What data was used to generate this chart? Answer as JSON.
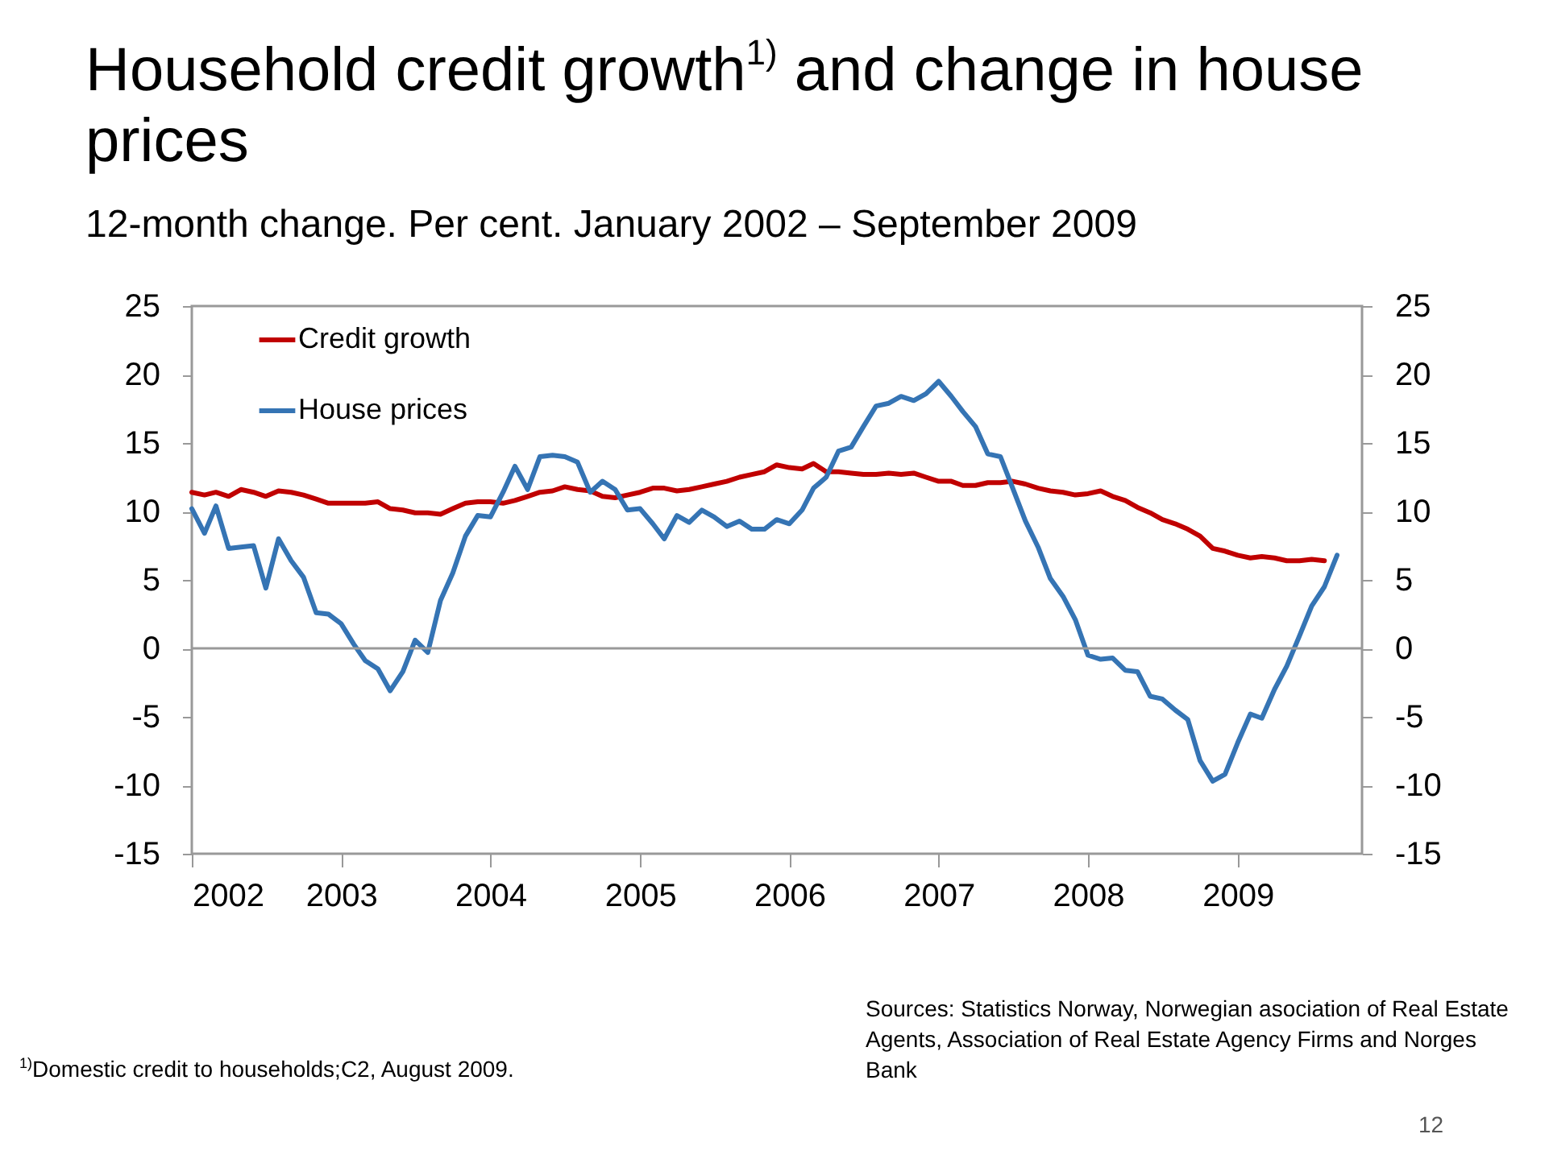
{
  "chart_data": {
    "type": "line",
    "title": "Household credit growth$^{1)}$ and change in house prices",
    "subtitle": "12-month change. Per cent. January 2002 – September 2009",
    "x": [
      "2002-01",
      "2002-02",
      "2002-03",
      "2002-04",
      "2002-05",
      "2002-06",
      "2002-07",
      "2002-08",
      "2002-09",
      "2002-10",
      "2002-11",
      "2002-12",
      "2003-01",
      "2003-02",
      "2003-03",
      "2003-04",
      "2003-05",
      "2003-06",
      "2003-07",
      "2003-08",
      "2003-09",
      "2003-10",
      "2003-11",
      "2003-12",
      "2004-01",
      "2004-02",
      "2004-03",
      "2004-04",
      "2004-05",
      "2004-06",
      "2004-07",
      "2004-08",
      "2004-09",
      "2004-10",
      "2004-11",
      "2004-12",
      "2005-01",
      "2005-02",
      "2005-03",
      "2005-04",
      "2005-05",
      "2005-06",
      "2005-07",
      "2005-08",
      "2005-09",
      "2005-10",
      "2005-11",
      "2005-12",
      "2006-01",
      "2006-02",
      "2006-03",
      "2006-04",
      "2006-05",
      "2006-06",
      "2006-07",
      "2006-08",
      "2006-09",
      "2006-10",
      "2006-11",
      "2006-12",
      "2007-01",
      "2007-02",
      "2007-03",
      "2007-04",
      "2007-05",
      "2007-06",
      "2007-07",
      "2007-08",
      "2007-09",
      "2007-10",
      "2007-11",
      "2007-12",
      "2008-01",
      "2008-02",
      "2008-03",
      "2008-04",
      "2008-05",
      "2008-06",
      "2008-07",
      "2008-08",
      "2008-09",
      "2008-10",
      "2008-11",
      "2008-12",
      "2009-01",
      "2009-02",
      "2009-03",
      "2009-04",
      "2009-05",
      "2009-06",
      "2009-07",
      "2009-08",
      "2009-09"
    ],
    "series": [
      {
        "name": "Credit growth",
        "color": "#c00000",
        "values": [
          11.4,
          11.2,
          11.4,
          11.1,
          11.6,
          11.4,
          11.1,
          11.5,
          11.4,
          11.2,
          10.9,
          10.6,
          10.6,
          10.6,
          10.6,
          10.7,
          10.2,
          10.1,
          9.9,
          9.9,
          9.8,
          10.2,
          10.6,
          10.7,
          10.7,
          10.6,
          10.8,
          11.1,
          11.4,
          11.5,
          11.8,
          11.6,
          11.5,
          11.1,
          11.0,
          11.2,
          11.4,
          11.7,
          11.7,
          11.5,
          11.6,
          11.8,
          12.0,
          12.2,
          12.5,
          12.7,
          12.9,
          13.4,
          13.2,
          13.1,
          13.5,
          12.9,
          12.9,
          12.8,
          12.7,
          12.7,
          12.8,
          12.7,
          12.8,
          12.5,
          12.2,
          12.2,
          11.9,
          11.9,
          12.1,
          12.1,
          12.2,
          12.0,
          11.7,
          11.5,
          11.4,
          11.2,
          11.3,
          11.5,
          11.1,
          10.8,
          10.3,
          9.9,
          9.4,
          9.1,
          8.7,
          8.2,
          7.3,
          7.1,
          6.8,
          6.6,
          6.7,
          6.6,
          6.4,
          6.4,
          6.5,
          6.4,
          null
        ]
      },
      {
        "name": "House prices",
        "color": "#3574b4",
        "values": [
          10.2,
          8.4,
          10.4,
          7.3,
          7.4,
          7.5,
          4.4,
          8.0,
          6.4,
          5.2,
          2.6,
          2.5,
          1.8,
          0.3,
          -0.9,
          -1.5,
          -3.1,
          -1.7,
          0.6,
          -0.3,
          3.5,
          5.5,
          8.2,
          9.7,
          9.6,
          11.4,
          13.3,
          11.6,
          14.0,
          14.1,
          14.0,
          13.6,
          11.4,
          12.2,
          11.6,
          10.1,
          10.2,
          9.1,
          8.0,
          9.7,
          9.2,
          10.1,
          9.6,
          8.9,
          9.3,
          8.7,
          8.7,
          9.4,
          9.1,
          10.1,
          11.7,
          12.5,
          14.4,
          14.7,
          16.2,
          17.7,
          17.9,
          18.4,
          18.1,
          18.6,
          19.5,
          18.4,
          17.3,
          16.2,
          14.2,
          14.0,
          11.7,
          9.3,
          7.4,
          5.1,
          3.8,
          2.1,
          -0.5,
          -0.8,
          -0.7,
          -1.6,
          -1.7,
          -3.5,
          -3.7,
          -4.5,
          -5.2,
          -8.2,
          -9.7,
          -9.2,
          -6.9,
          -4.8,
          -5.1,
          -3.0,
          -1.3,
          0.9,
          3.1,
          4.5,
          6.8
        ]
      }
    ],
    "xlim": [
      "2002-01",
      "2009-11"
    ],
    "xticks": [
      {
        "value": "2002",
        "label": "2002"
      },
      {
        "value": "2003",
        "label": "2003"
      },
      {
        "value": "2004",
        "label": "2004"
      },
      {
        "value": "2005",
        "label": "2005"
      },
      {
        "value": "2006",
        "label": "2006"
      },
      {
        "value": "2007",
        "label": "2007"
      },
      {
        "value": "2008",
        "label": "2008"
      },
      {
        "value": "2009",
        "label": "2009"
      }
    ],
    "ylim": [
      -15,
      25
    ],
    "yticks": [
      -15,
      -10,
      -5,
      0,
      5,
      10,
      15,
      20,
      25
    ],
    "y2lim": [
      -15,
      25
    ],
    "y2ticks": [
      -15,
      -10,
      -5,
      0,
      5,
      10,
      15,
      20,
      25
    ],
    "ref_lines": [
      {
        "axis": "y",
        "value": 0,
        "color": "#999999"
      }
    ],
    "grid": false,
    "legend": "top left",
    "marker": "none",
    "line_style": "solid",
    "annotations": [
      "$^{1)}$Domestic credit to households;C2,  August 2009.",
      "Sources: Statistics Norway, Norwegian asociation of Real Estate Agents, Association of Real Estate Agency Firms and Norges Bank",
      "12"
    ]
  }
}
